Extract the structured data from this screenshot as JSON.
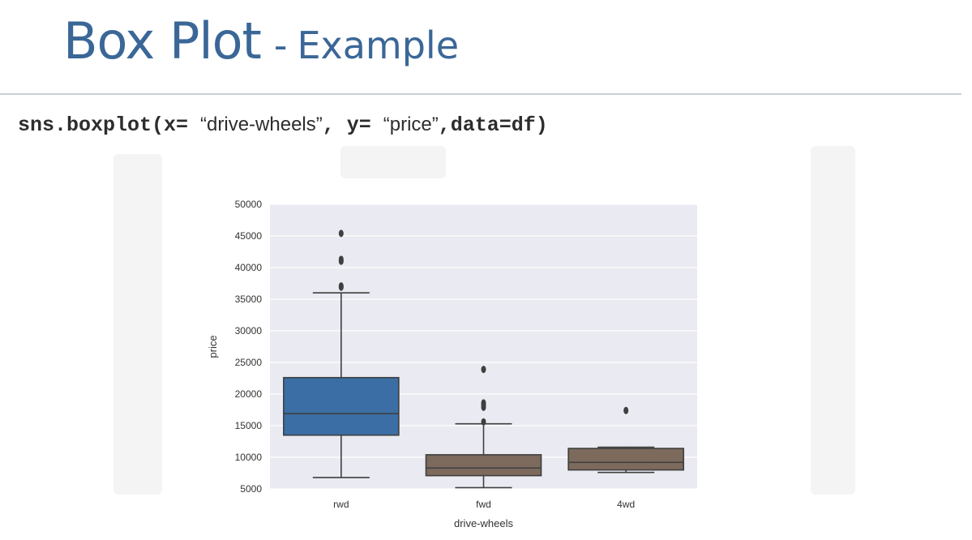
{
  "slide": {
    "title_main": "Box Plot",
    "title_sep": "-",
    "title_sub": "Example",
    "code": {
      "p1": "sns.boxplot(x= ",
      "s1": "“drive-wheels”",
      "p2": ", y= ",
      "s2": "“price”",
      "p3": ",data=df)"
    }
  },
  "colors": {
    "title": "#3a6797",
    "plot_bg": "#eaeaf2",
    "rwd_box": "#3a6ea5",
    "other_box": "#7c6a5c",
    "line": "#3f3f3f"
  },
  "chart_data": {
    "type": "box",
    "xlabel": "drive-wheels",
    "ylabel": "price",
    "ylim": [
      5000,
      50000
    ],
    "yticks": [
      5000,
      10000,
      15000,
      20000,
      25000,
      30000,
      35000,
      40000,
      45000,
      50000
    ],
    "grid": true,
    "categories": [
      "rwd",
      "fwd",
      "4wd"
    ],
    "boxes": [
      {
        "category": "rwd",
        "whisker_low": 6800,
        "q1": 13500,
        "median": 16900,
        "q3": 22600,
        "whisker_high": 36000,
        "outliers": [
          36900,
          37100,
          41000,
          41300,
          45400
        ],
        "color": "#3a6ea5"
      },
      {
        "category": "fwd",
        "whisker_low": 5200,
        "q1": 7100,
        "median": 8300,
        "q3": 10400,
        "whisker_high": 15300,
        "outliers": [
          15600,
          17900,
          18300,
          18600,
          23900
        ],
        "color": "#7c6a5c"
      },
      {
        "category": "4wd",
        "whisker_low": 7600,
        "q1": 8000,
        "median": 9200,
        "q3": 11400,
        "whisker_high": 11600,
        "outliers": [
          17400
        ],
        "color": "#7c6a5c"
      }
    ]
  }
}
